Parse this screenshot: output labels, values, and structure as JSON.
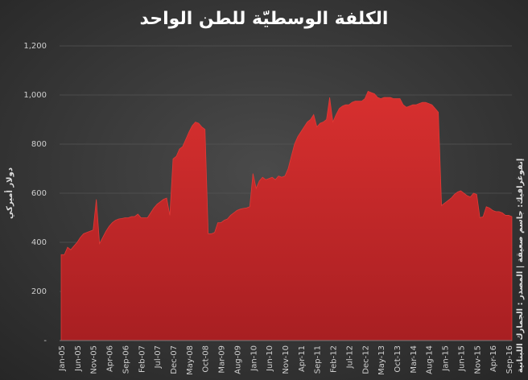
{
  "chart_data": {
    "type": "area",
    "title": "الكلفة الوسطيّة للطن الواحد",
    "y_axis_label": "دولار أميركي",
    "source": "إنفوغرافيك: جاسم صعيقة | المصدر : الجمارك اللبنانية",
    "color": "#c8282c",
    "grid": true,
    "ylim": [
      0,
      1200
    ],
    "yticks": [
      {
        "value": 0,
        "label": "-"
      },
      200,
      400,
      600,
      800,
      {
        "value": 1000,
        "label": "1,000"
      },
      {
        "value": 1200,
        "label": "1,200"
      }
    ],
    "categories": [
      "Jan-05",
      null,
      null,
      null,
      null,
      "Jun-05",
      null,
      null,
      null,
      null,
      "Nov-05",
      null,
      null,
      null,
      null,
      "Apr-06",
      null,
      null,
      null,
      null,
      "Sep-06",
      null,
      null,
      null,
      null,
      "Feb-07",
      null,
      null,
      null,
      null,
      "Jul-07",
      null,
      null,
      null,
      null,
      "Dec-07",
      null,
      null,
      null,
      null,
      "May-08",
      null,
      null,
      null,
      null,
      "Oct-08",
      null,
      null,
      null,
      null,
      "Mar-09",
      null,
      null,
      null,
      null,
      "Aug-09",
      null,
      null,
      null,
      null,
      "Jan-10",
      null,
      null,
      null,
      null,
      "Jun-10",
      null,
      null,
      null,
      null,
      "Nov-10",
      null,
      null,
      null,
      null,
      "Apr-11",
      null,
      null,
      null,
      null,
      "Sep-11",
      null,
      null,
      null,
      null,
      "Feb-12",
      null,
      null,
      null,
      null,
      "Jul-12",
      null,
      null,
      null,
      null,
      "Dec-12",
      null,
      null,
      null,
      null,
      "May-13",
      null,
      null,
      null,
      null,
      "Oct-13",
      null,
      null,
      null,
      null,
      "Mar-14",
      null,
      null,
      null,
      null,
      "Aug-14",
      null,
      null,
      null,
      null,
      "Jan-15",
      null,
      null,
      null,
      null,
      "Jun-15",
      null,
      null,
      null,
      null,
      "Nov-15",
      null,
      null,
      null,
      null,
      "Apr-16",
      null,
      null,
      null,
      null,
      "Sep-16",
      null
    ],
    "values": [
      350,
      350,
      380,
      370,
      385,
      400,
      420,
      435,
      440,
      445,
      450,
      575,
      395,
      420,
      445,
      465,
      480,
      490,
      495,
      497,
      500,
      500,
      505,
      505,
      515,
      500,
      500,
      500,
      520,
      540,
      555,
      565,
      575,
      580,
      510,
      740,
      750,
      780,
      790,
      820,
      850,
      875,
      890,
      885,
      870,
      860,
      435,
      435,
      440,
      480,
      480,
      490,
      495,
      510,
      520,
      530,
      535,
      538,
      540,
      545,
      680,
      620,
      650,
      665,
      655,
      660,
      665,
      655,
      670,
      665,
      670,
      700,
      750,
      800,
      830,
      850,
      870,
      890,
      900,
      920,
      870,
      885,
      890,
      900,
      990,
      890,
      920,
      945,
      955,
      960,
      960,
      970,
      975,
      975,
      975,
      985,
      1015,
      1010,
      1005,
      990,
      985,
      990,
      990,
      990,
      985,
      985,
      985,
      960,
      950,
      955,
      960,
      960,
      965,
      970,
      970,
      965,
      960,
      945,
      930,
      550,
      560,
      570,
      580,
      595,
      605,
      610,
      600,
      590,
      585,
      600,
      595,
      500,
      505,
      545,
      540,
      530,
      525,
      525,
      520,
      510,
      510,
      505
    ]
  }
}
